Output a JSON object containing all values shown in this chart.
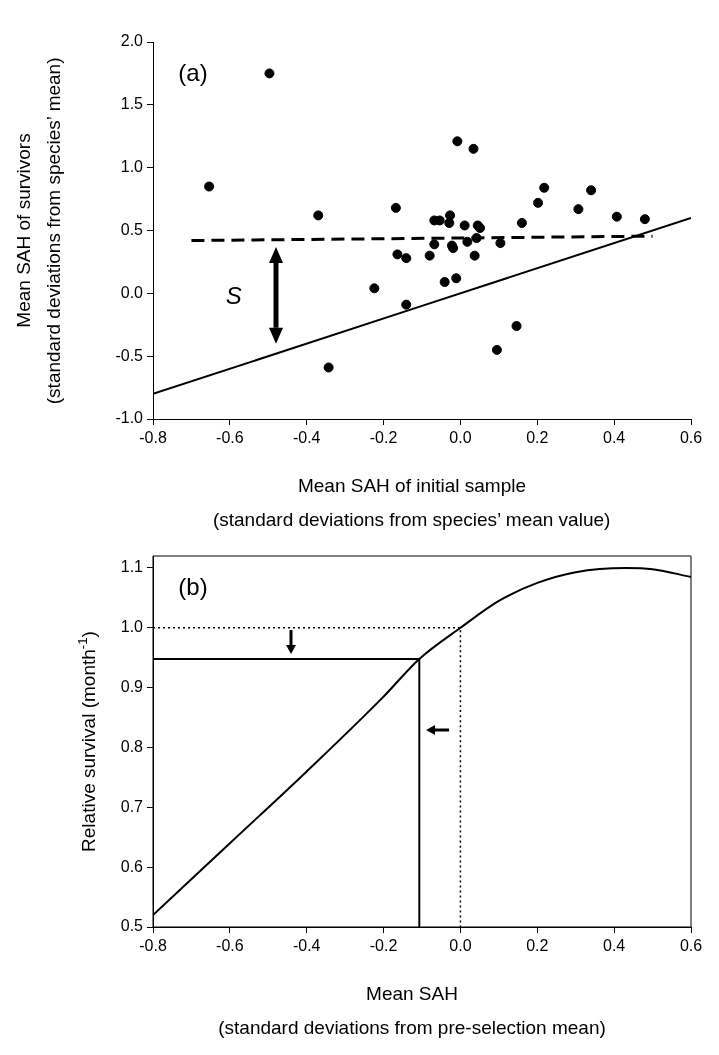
{
  "chart_data": [
    {
      "type": "scatter",
      "xlabel": "Mean SAH of initial sample\n(standard deviations from species’ mean value)",
      "ylabel": "Mean SAH of survivors\n(standard deviations from species’ mean)",
      "xlim": [
        -0.8,
        0.6
      ],
      "ylim": [
        -1.0,
        2.0
      ],
      "xticks": [
        {
          "value": -0.8,
          "label": "-0.8"
        },
        {
          "value": -0.6,
          "label": "-0.6"
        },
        {
          "value": -0.4,
          "label": "-0.4"
        },
        {
          "value": -0.2,
          "label": "-0.2"
        },
        {
          "value": 0,
          "label": "0.0"
        },
        {
          "value": 0.2,
          "label": "0.2"
        },
        {
          "value": 0.4,
          "label": "0.4"
        },
        {
          "value": 0.6,
          "label": "0.6"
        }
      ],
      "yticks": [
        {
          "value": -1,
          "label": "-1.0"
        },
        {
          "value": -0.5,
          "label": "-0.5"
        },
        {
          "value": 0,
          "label": "0.0"
        },
        {
          "value": 0.5,
          "label": "0.5"
        },
        {
          "value": 1,
          "label": "1.0"
        },
        {
          "value": 1.5,
          "label": "1.5"
        },
        {
          "value": 2,
          "label": "2.0"
        }
      ],
      "grid": false,
      "annotations": [
        "(a)",
        "S"
      ],
      "series": [
        {
          "marker": "circle",
          "color": "#000000",
          "x": [
            -0.497,
            -0.654,
            -0.37,
            -0.343,
            -0.224,
            -0.168,
            -0.164,
            -0.141,
            -0.141,
            -0.08,
            -0.068,
            -0.054,
            -0.068,
            -0.041,
            -0.027,
            -0.029,
            -0.022,
            -0.019,
            -0.011,
            -0.008,
            0.011,
            0.018,
            0.034,
            0.037,
            0.042,
            0.045,
            0.051,
            0.095,
            0.104,
            0.146,
            0.16,
            0.202,
            0.218,
            0.307,
            0.34,
            0.407,
            0.48
          ],
          "values": [
            1.75,
            0.85,
            0.62,
            -0.59,
            0.04,
            0.68,
            0.31,
            0.28,
            -0.09,
            0.3,
            0.58,
            0.58,
            0.39,
            0.09,
            0.62,
            0.56,
            0.38,
            0.36,
            0.12,
            1.21,
            0.54,
            0.41,
            1.15,
            0.3,
            0.44,
            0.54,
            0.52,
            -0.45,
            0.4,
            -0.26,
            0.56,
            0.72,
            0.84,
            0.67,
            0.82,
            0.61,
            0.59
          ]
        },
        {
          "type": "line",
          "color": "#000000",
          "line_style": "dashed",
          "x": [
            -0.7,
            0.5
          ],
          "values": [
            0.42,
            0.455
          ]
        },
        {
          "type": "line",
          "color": "#000000",
          "line_style": "solid",
          "x": [
            -0.8,
            0.6
          ],
          "values": [
            -0.8,
            0.6
          ]
        }
      ]
    },
    {
      "type": "line",
      "xlabel": "Mean SAH\n(standard deviations from pre-selection mean)",
      "ylabel": "Relative survival (month$^{-1}$)",
      "xlim": [
        -0.8,
        0.6
      ],
      "ylim": [
        0.5,
        1.12
      ],
      "xticks": [
        {
          "value": -0.8,
          "label": "-0.8"
        },
        {
          "value": -0.6,
          "label": "-0.6"
        },
        {
          "value": -0.4,
          "label": "-0.4"
        },
        {
          "value": -0.2,
          "label": "-0.2"
        },
        {
          "value": 0,
          "label": "0.0"
        },
        {
          "value": 0.2,
          "label": "0.2"
        },
        {
          "value": 0.4,
          "label": "0.4"
        },
        {
          "value": 0.6,
          "label": "0.6"
        }
      ],
      "yticks": [
        0.5,
        0.6,
        0.7,
        0.8,
        0.9,
        {
          "value": 1,
          "label": "1.0"
        },
        1.1
      ],
      "grid": false,
      "annotations": [
        "(b)"
      ],
      "series": [
        {
          "color": "#000000",
          "line_style": "solid",
          "x": [
            -0.8,
            -0.6,
            -0.4,
            -0.2,
            -0.107,
            0,
            0.1,
            0.2,
            0.3,
            0.43,
            0.5,
            0.6
          ],
          "values": [
            0.52,
            0.64,
            0.76,
            0.885,
            0.948,
            1.0,
            1.045,
            1.075,
            1.093,
            1.1,
            1.098,
            1.085
          ]
        },
        {
          "color": "#000000",
          "line_style": "dotted",
          "x": [
            -0.8,
            0,
            0
          ],
          "values": [
            1.0,
            1.0,
            0.5
          ]
        },
        {
          "color": "#000000",
          "line_style": "solid",
          "x": [
            -0.8,
            -0.107,
            -0.107
          ],
          "values": [
            0.948,
            0.948,
            0.5
          ]
        }
      ]
    }
  ]
}
